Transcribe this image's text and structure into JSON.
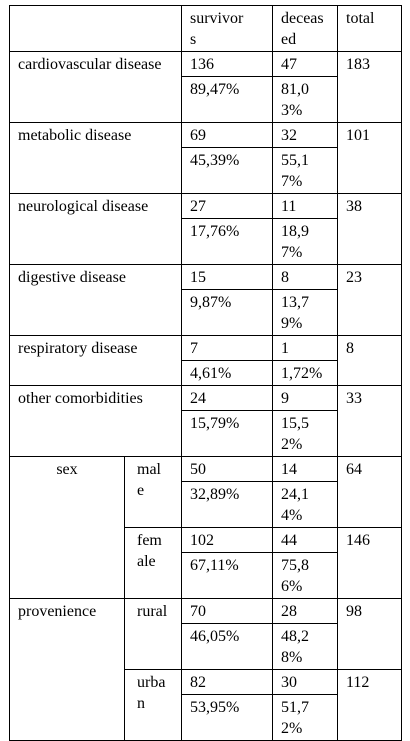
{
  "table": {
    "header": {
      "survivors": "survivors",
      "deceased": "deceased",
      "total": "total"
    },
    "rows": [
      {
        "label": "cardiovascular disease",
        "survivors": "136",
        "deceased": "47",
        "total": "183",
        "survivors_pct": "89,47%",
        "deceased_pct": "81,03%"
      },
      {
        "label": "metabolic disease",
        "survivors": "69",
        "deceased": "32",
        "total": "101",
        "survivors_pct": "45,39%",
        "deceased_pct": "55,17%"
      },
      {
        "label": "neurological disease",
        "survivors": "27",
        "deceased": "11",
        "total": "38",
        "survivors_pct": "17,76%",
        "deceased_pct": "18,97%"
      },
      {
        "label": "digestive disease",
        "survivors": "15",
        "deceased": "8",
        "total": "23",
        "survivors_pct": "9,87%",
        "deceased_pct": "13,79%"
      },
      {
        "label": "respiratory disease",
        "survivors": "7",
        "deceased": "1",
        "total": "8",
        "survivors_pct": "4,61%",
        "deceased_pct": "1,72%"
      },
      {
        "label": "other comorbidities",
        "survivors": "24",
        "deceased": "9",
        "total": "33",
        "survivors_pct": "15,79%",
        "deceased_pct": "15,52%"
      }
    ],
    "groups": [
      {
        "label": "sex",
        "sub": [
          {
            "label": "male",
            "survivors": "50",
            "deceased": "14",
            "total": "64",
            "survivors_pct": "32,89%",
            "deceased_pct": "24,14%"
          },
          {
            "label": "female",
            "survivors": "102",
            "deceased": "44",
            "total": "146",
            "survivors_pct": "67,11%",
            "deceased_pct": "75,86%"
          }
        ]
      },
      {
        "label": "provenience",
        "sub": [
          {
            "label": "rural",
            "survivors": "70",
            "deceased": "28",
            "total": "98",
            "survivors_pct": "46,05%",
            "deceased_pct": "48,28%"
          },
          {
            "label": "urban",
            "survivors": "82",
            "deceased": "30",
            "total": "112",
            "survivors_pct": "53,95%",
            "deceased_pct": "51,72%"
          }
        ]
      }
    ]
  }
}
